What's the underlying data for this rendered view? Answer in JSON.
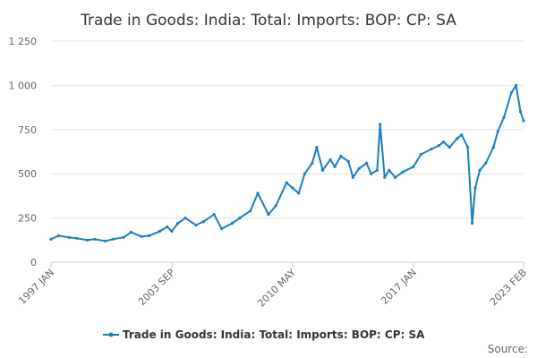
{
  "chart_data": {
    "type": "line",
    "title": "Trade in Goods: India: Total: Imports: BOP: CP: SA",
    "xlabel": "",
    "ylabel": "",
    "ylim": [
      0,
      1250
    ],
    "y_ticks": [
      0,
      250,
      500,
      750,
      1000,
      1250
    ],
    "y_tick_labels": [
      "0",
      "250",
      "500",
      "750",
      "1 000",
      "1 250"
    ],
    "x_tick_labels": [
      "1997 JAN",
      "2003 SEP",
      "2010 MAY",
      "2017 JAN",
      "2023 FEB"
    ],
    "x_tick_dates": [
      "1997-01",
      "2003-09",
      "2010-05",
      "2017-01",
      "2023-02"
    ],
    "grid": true,
    "legend_position": "bottom",
    "series": [
      {
        "name": "Trade in Goods: India: Total: Imports: BOP: CP: SA",
        "color": "#1a7fc0",
        "points": [
          [
            "1997-01",
            130
          ],
          [
            "1997-06",
            150
          ],
          [
            "1998-01",
            140
          ],
          [
            "1998-06",
            135
          ],
          [
            "1999-01",
            125
          ],
          [
            "1999-06",
            130
          ],
          [
            "2000-01",
            120
          ],
          [
            "2000-06",
            130
          ],
          [
            "2001-01",
            140
          ],
          [
            "2001-06",
            170
          ],
          [
            "2002-01",
            145
          ],
          [
            "2002-06",
            150
          ],
          [
            "2003-01",
            175
          ],
          [
            "2003-06",
            200
          ],
          [
            "2003-09",
            175
          ],
          [
            "2004-01",
            220
          ],
          [
            "2004-06",
            250
          ],
          [
            "2005-01",
            210
          ],
          [
            "2005-06",
            230
          ],
          [
            "2006-01",
            270
          ],
          [
            "2006-06",
            190
          ],
          [
            "2007-01",
            220
          ],
          [
            "2007-06",
            250
          ],
          [
            "2008-01",
            290
          ],
          [
            "2008-06",
            390
          ],
          [
            "2009-01",
            270
          ],
          [
            "2009-06",
            320
          ],
          [
            "2010-01",
            450
          ],
          [
            "2010-05",
            420
          ],
          [
            "2010-09",
            390
          ],
          [
            "2011-01",
            500
          ],
          [
            "2011-06",
            560
          ],
          [
            "2011-09",
            650
          ],
          [
            "2012-01",
            520
          ],
          [
            "2012-06",
            580
          ],
          [
            "2012-09",
            540
          ],
          [
            "2013-01",
            600
          ],
          [
            "2013-06",
            570
          ],
          [
            "2013-09",
            480
          ],
          [
            "2014-01",
            530
          ],
          [
            "2014-06",
            560
          ],
          [
            "2014-09",
            500
          ],
          [
            "2015-01",
            520
          ],
          [
            "2015-03",
            780
          ],
          [
            "2015-06",
            480
          ],
          [
            "2015-09",
            520
          ],
          [
            "2016-01",
            480
          ],
          [
            "2016-06",
            510
          ],
          [
            "2017-01",
            540
          ],
          [
            "2017-06",
            610
          ],
          [
            "2018-01",
            640
          ],
          [
            "2018-06",
            660
          ],
          [
            "2018-09",
            680
          ],
          [
            "2019-01",
            650
          ],
          [
            "2019-06",
            700
          ],
          [
            "2019-09",
            720
          ],
          [
            "2020-01",
            650
          ],
          [
            "2020-04",
            220
          ],
          [
            "2020-06",
            420
          ],
          [
            "2020-09",
            520
          ],
          [
            "2021-01",
            560
          ],
          [
            "2021-06",
            650
          ],
          [
            "2021-09",
            740
          ],
          [
            "2022-01",
            820
          ],
          [
            "2022-06",
            960
          ],
          [
            "2022-09",
            1000
          ],
          [
            "2022-12",
            850
          ],
          [
            "2023-02",
            800
          ]
        ]
      }
    ],
    "source_label": "Source:"
  }
}
